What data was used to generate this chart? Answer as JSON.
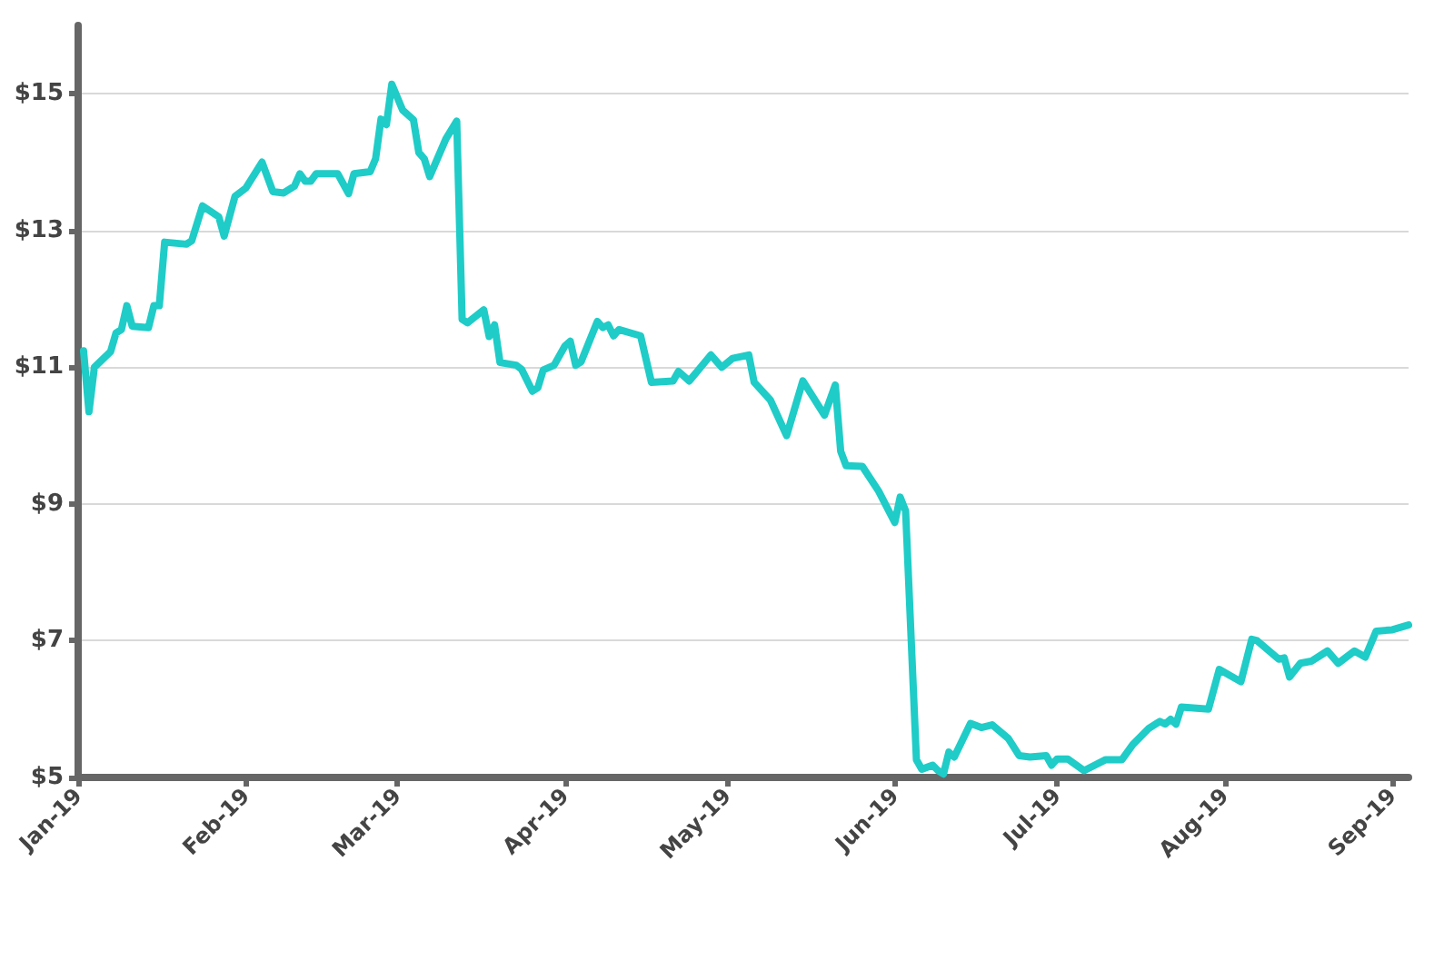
{
  "chart_data": {
    "type": "line",
    "x": [
      "2019-01-02",
      "2019-01-03",
      "2019-01-04",
      "2019-01-07",
      "2019-01-08",
      "2019-01-09",
      "2019-01-10",
      "2019-01-11",
      "2019-01-14",
      "2019-01-15",
      "2019-01-16",
      "2019-01-17",
      "2019-01-21",
      "2019-01-22",
      "2019-01-24",
      "2019-01-27",
      "2019-01-28",
      "2019-01-30",
      "2019-02-01",
      "2019-02-04",
      "2019-02-06",
      "2019-02-08",
      "2019-02-10",
      "2019-02-11",
      "2019-02-12",
      "2019-02-13",
      "2019-02-14",
      "2019-02-18",
      "2019-02-20",
      "2019-02-21",
      "2019-02-24",
      "2019-02-25",
      "2019-02-26",
      "2019-02-27",
      "2019-02-28",
      "2019-03-02",
      "2019-03-04",
      "2019-03-05",
      "2019-03-06",
      "2019-03-07",
      "2019-03-10",
      "2019-03-12",
      "2019-03-13",
      "2019-03-14",
      "2019-03-17",
      "2019-03-18",
      "2019-03-19",
      "2019-03-20",
      "2019-03-23",
      "2019-03-24",
      "2019-03-26",
      "2019-03-27",
      "2019-03-28",
      "2019-03-30",
      "2019-04-01",
      "2019-04-02",
      "2019-04-03",
      "2019-04-04",
      "2019-04-07",
      "2019-04-08",
      "2019-04-09",
      "2019-04-10",
      "2019-04-11",
      "2019-04-15",
      "2019-04-17",
      "2019-04-21",
      "2019-04-22",
      "2019-04-24",
      "2019-04-28",
      "2019-04-30",
      "2019-05-02",
      "2019-05-05",
      "2019-05-06",
      "2019-05-09",
      "2019-05-12",
      "2019-05-15",
      "2019-05-19",
      "2019-05-21",
      "2019-05-22",
      "2019-05-23",
      "2019-05-26",
      "2019-05-29",
      "2019-06-01",
      "2019-06-02",
      "2019-06-03",
      "2019-06-05",
      "2019-06-06",
      "2019-06-08",
      "2019-06-09",
      "2019-06-10",
      "2019-06-11",
      "2019-06-12",
      "2019-06-15",
      "2019-06-17",
      "2019-06-19",
      "2019-06-22",
      "2019-06-24",
      "2019-06-26",
      "2019-06-29",
      "2019-06-30",
      "2019-07-01",
      "2019-07-03",
      "2019-07-06",
      "2019-07-10",
      "2019-07-13",
      "2019-07-15",
      "2019-07-18",
      "2019-07-20",
      "2019-07-21",
      "2019-07-22",
      "2019-07-23",
      "2019-07-24",
      "2019-07-29",
      "2019-07-31",
      "2019-08-04",
      "2019-08-06",
      "2019-08-07",
      "2019-08-11",
      "2019-08-12",
      "2019-08-13",
      "2019-08-15",
      "2019-08-17",
      "2019-08-20",
      "2019-08-22",
      "2019-08-25",
      "2019-08-27",
      "2019-08-29",
      "2019-09-01",
      "2019-09-04"
    ],
    "series": [
      {
        "color": "#1fccc7",
        "values": [
          11.24,
          10.35,
          11.0,
          11.23,
          11.5,
          11.55,
          11.9,
          11.6,
          11.58,
          11.9,
          11.9,
          12.83,
          12.8,
          12.85,
          13.36,
          13.2,
          12.92,
          13.5,
          13.62,
          14.0,
          13.57,
          13.55,
          13.65,
          13.83,
          13.72,
          13.72,
          13.83,
          13.83,
          13.54,
          13.83,
          13.86,
          14.05,
          14.63,
          14.55,
          15.14,
          14.76,
          14.62,
          14.14,
          14.05,
          13.79,
          14.34,
          14.6,
          11.7,
          11.65,
          11.84,
          11.45,
          11.62,
          11.07,
          11.03,
          10.97,
          10.65,
          10.7,
          10.96,
          11.03,
          11.31,
          11.38,
          11.03,
          11.08,
          11.67,
          11.58,
          11.62,
          11.46,
          11.55,
          11.46,
          10.78,
          10.8,
          10.94,
          10.8,
          11.18,
          11.0,
          11.13,
          11.18,
          10.78,
          10.52,
          10.0,
          10.8,
          10.3,
          10.74,
          9.77,
          9.56,
          9.55,
          9.19,
          8.73,
          9.1,
          8.9,
          5.26,
          5.12,
          5.18,
          5.1,
          5.05,
          5.37,
          5.3,
          5.79,
          5.73,
          5.77,
          5.57,
          5.32,
          5.3,
          5.32,
          5.18,
          5.27,
          5.27,
          5.1,
          5.26,
          5.26,
          5.48,
          5.72,
          5.82,
          5.78,
          5.85,
          5.78,
          6.03,
          6.0,
          6.58,
          6.4,
          7.02,
          7.0,
          6.73,
          6.75,
          6.47,
          6.67,
          6.7,
          6.85,
          6.67,
          6.85,
          6.76,
          7.14,
          7.16,
          7.23
        ]
      }
    ],
    "xlim": [
      "2019-01-01",
      "2019-09-04"
    ],
    "xticks": [
      {
        "value": "2019-01-01",
        "label": "Jan-19"
      },
      {
        "value": "2019-02-01",
        "label": "Feb-19"
      },
      {
        "value": "2019-03-01",
        "label": "Mar-19"
      },
      {
        "value": "2019-04-01",
        "label": "Apr-19"
      },
      {
        "value": "2019-05-01",
        "label": "May-19"
      },
      {
        "value": "2019-06-01",
        "label": "Jun-19"
      },
      {
        "value": "2019-07-01",
        "label": "Jul-19"
      },
      {
        "value": "2019-08-01",
        "label": "Aug-19"
      },
      {
        "value": "2019-09-01",
        "label": "Sep-19"
      }
    ],
    "ylim": [
      5,
      16
    ],
    "yticks": [
      {
        "value": 5,
        "label": "$5"
      },
      {
        "value": 7,
        "label": "$7"
      },
      {
        "value": 9,
        "label": "$9"
      },
      {
        "value": 11,
        "label": "$11"
      },
      {
        "value": 13,
        "label": "$13"
      },
      {
        "value": 15,
        "label": "$15"
      }
    ],
    "grid": "y",
    "marker": "none",
    "line_style": "solid"
  }
}
